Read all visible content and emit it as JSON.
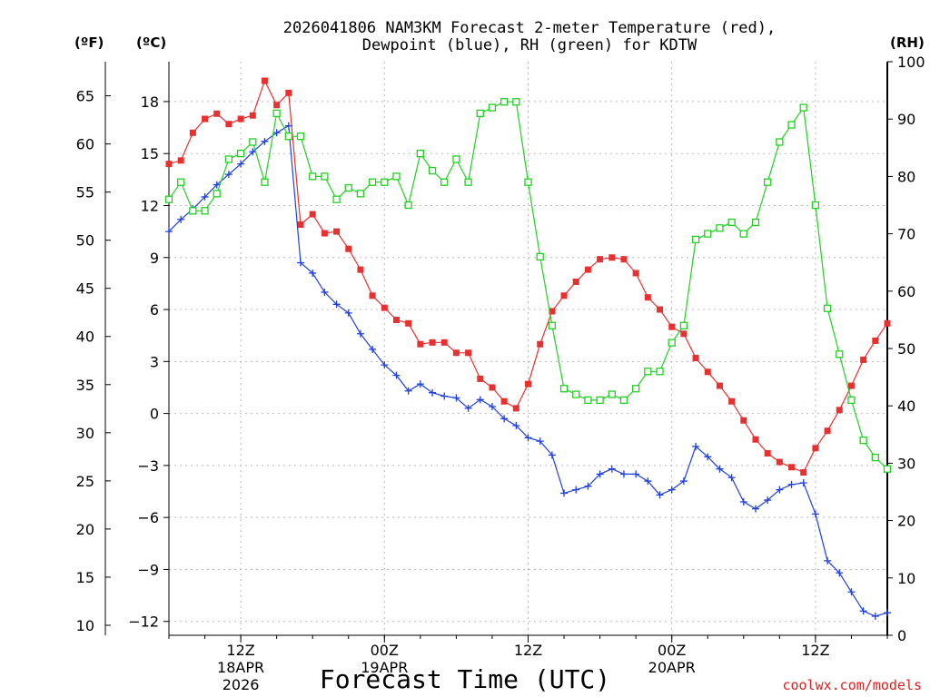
{
  "chart_data": {
    "type": "line",
    "title_line1": "2026041806 NAM3KM Forecast 2-meter Temperature (red),",
    "title_line2": "Dewpoint (blue), RH (green) for KDTW",
    "left_outer_unit": "(ºF)",
    "left_inner_unit": "(ºC)",
    "right_unit": "(RH)",
    "xlabel": "Forecast Time (UTC)",
    "credit": "coolwx.com/models",
    "x_hours_range": [
      0,
      60
    ],
    "ylim_c": [
      -12.8,
      20.3
    ],
    "ylim_rh": [
      0,
      100
    ],
    "yticks_c": [
      "18",
      "15",
      "12",
      "9",
      "6",
      "3",
      "0",
      "-3",
      "-6",
      "-9",
      "-12"
    ],
    "yticks_f": [
      "65",
      "60",
      "55",
      "50",
      "45",
      "40",
      "35",
      "30",
      "25",
      "20",
      "15",
      "10"
    ],
    "yticks_rh": [
      "100",
      "90",
      "80",
      "70",
      "60",
      "50",
      "40",
      "30",
      "20",
      "10",
      "0"
    ],
    "xticks": [
      {
        "hour": 6,
        "label": "12Z",
        "date": "18APR",
        "year": "2026"
      },
      {
        "hour": 18,
        "label": "00Z",
        "date": "19APR",
        "year": ""
      },
      {
        "hour": 30,
        "label": "12Z",
        "date": "",
        "year": ""
      },
      {
        "hour": 42,
        "label": "00Z",
        "date": "20APR",
        "year": ""
      },
      {
        "hour": 54,
        "label": "12Z",
        "date": "",
        "year": ""
      }
    ],
    "series": [
      {
        "name": "2-meter Temperature",
        "unit": "C",
        "color": "#e83030",
        "marker": "filled-square",
        "x": [
          0,
          1,
          2,
          3,
          4,
          5,
          6,
          7,
          8,
          9,
          10,
          11,
          12,
          13,
          14,
          15,
          16,
          17,
          18,
          19,
          20,
          21,
          22,
          23,
          24,
          25,
          26,
          27,
          28,
          29,
          30,
          31,
          32,
          33,
          34,
          35,
          36,
          37,
          38,
          39,
          40,
          41,
          42,
          43,
          44,
          45,
          46,
          47,
          48,
          49,
          50,
          51,
          52,
          53,
          54,
          55,
          56,
          57,
          58,
          59,
          60
        ],
        "values": [
          14.4,
          14.6,
          16.2,
          17.0,
          17.3,
          16.7,
          17.0,
          17.2,
          19.2,
          17.8,
          18.5,
          10.9,
          11.5,
          10.4,
          10.5,
          9.5,
          8.3,
          6.8,
          6.1,
          5.4,
          5.2,
          4.0,
          4.1,
          4.1,
          3.5,
          3.5,
          2.0,
          1.5,
          0.7,
          0.3,
          1.7,
          4.0,
          5.9,
          6.8,
          7.6,
          8.3,
          8.9,
          9.0,
          8.9,
          8.1,
          6.7,
          6.0,
          5.0,
          4.6,
          3.2,
          2.4,
          1.6,
          0.7,
          -0.4,
          -1.5,
          -2.3,
          -2.8,
          -3.1,
          -3.4,
          -2.0,
          -1.0,
          0.2,
          1.6,
          3.1,
          4.2,
          5.2
        ]
      },
      {
        "name": "Dewpoint",
        "unit": "C",
        "color": "#2040e0",
        "marker": "plus",
        "x": [
          0,
          1,
          2,
          3,
          4,
          5,
          6,
          7,
          8,
          9,
          10,
          11,
          12,
          13,
          14,
          15,
          16,
          17,
          18,
          19,
          20,
          21,
          22,
          23,
          24,
          25,
          26,
          27,
          28,
          29,
          30,
          31,
          32,
          33,
          34,
          35,
          36,
          37,
          38,
          39,
          40,
          41,
          42,
          43,
          44,
          45,
          46,
          47,
          48,
          49,
          50,
          51,
          52,
          53,
          54,
          55,
          56,
          57,
          58,
          59,
          60
        ],
        "values": [
          10.5,
          11.2,
          11.8,
          12.5,
          13.2,
          13.8,
          14.4,
          15.1,
          15.7,
          16.2,
          16.6,
          8.7,
          8.1,
          7.0,
          6.3,
          5.8,
          4.6,
          3.7,
          2.8,
          2.2,
          1.3,
          1.7,
          1.2,
          1.0,
          0.9,
          0.3,
          0.8,
          0.4,
          -0.3,
          -0.7,
          -1.4,
          -1.6,
          -2.4,
          -4.6,
          -4.4,
          -4.2,
          -3.5,
          -3.2,
          -3.5,
          -3.5,
          -3.9,
          -4.7,
          -4.4,
          -3.9,
          -1.9,
          -2.5,
          -3.2,
          -3.7,
          -5.1,
          -5.5,
          -5.0,
          -4.4,
          -4.1,
          -4.0,
          -5.8,
          -8.5,
          -9.2,
          -10.3,
          -11.4,
          -11.7,
          -11.5
        ]
      },
      {
        "name": "RH",
        "unit": "%",
        "color": "#20d020",
        "marker": "open-square",
        "x": [
          0,
          1,
          2,
          3,
          4,
          5,
          6,
          7,
          8,
          9,
          10,
          11,
          12,
          13,
          14,
          15,
          16,
          17,
          18,
          19,
          20,
          21,
          22,
          23,
          24,
          25,
          26,
          27,
          28,
          29,
          30,
          31,
          32,
          33,
          34,
          35,
          36,
          37,
          38,
          39,
          40,
          41,
          42,
          43,
          44,
          45,
          46,
          47,
          48,
          49,
          50,
          51,
          52,
          53,
          54,
          55,
          56,
          57,
          58,
          59,
          60
        ],
        "values": [
          76,
          79,
          74,
          74,
          77,
          83,
          84,
          86,
          79,
          91,
          87,
          87,
          80,
          80,
          76,
          78,
          77,
          79,
          79,
          80,
          75,
          84,
          81,
          79,
          83,
          79,
          91,
          92,
          93,
          93,
          79,
          66,
          54,
          43,
          42,
          41,
          41,
          42,
          41,
          43,
          46,
          46,
          51,
          54,
          69,
          70,
          71,
          72,
          70,
          72,
          79,
          86,
          89,
          92,
          75,
          57,
          49,
          41,
          34,
          31,
          29
        ]
      }
    ]
  }
}
